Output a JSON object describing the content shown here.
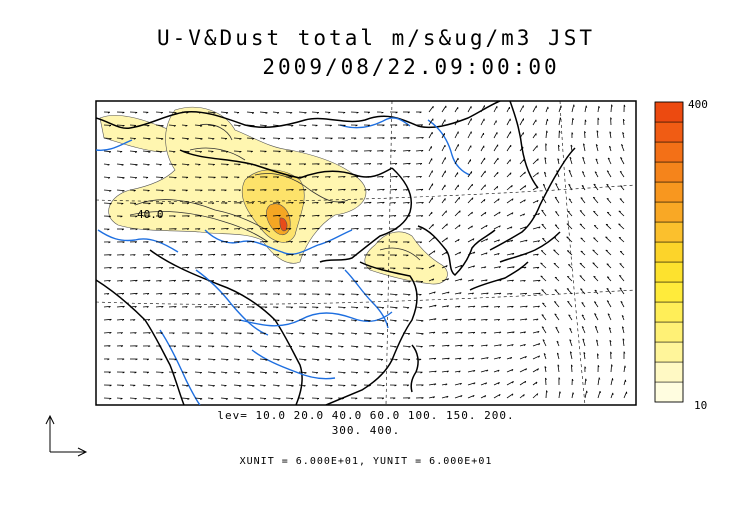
{
  "title": {
    "line1": "U-V&Dust total m/s&ug/m3 JST",
    "line2": "2009/08/22.09:00:00"
  },
  "contour_levels": {
    "line1": "lev= 10.0 20.0 40.0 60.0 100. 150. 200.",
    "line2": "300. 400."
  },
  "contour_label": "40.0",
  "vector_units": "XUNIT = 6.000E+01, YUNIT = 6.000E+01",
  "colorbar": {
    "max_label": "400",
    "min_label": "10",
    "colors": [
      "#fffde0",
      "#fff9c4",
      "#fff59a",
      "#fff176",
      "#ffee58",
      "#ffeb3b",
      "#fde22e",
      "#fcd42a",
      "#fbc02d",
      "#f9a825",
      "#f8971f",
      "#f5841b",
      "#f37017",
      "#f05c14",
      "#ec4a10"
    ]
  },
  "colors": {
    "coast": "#000000",
    "river": "#1e6fe0",
    "dust_light": "#fff6b0",
    "dust_mid": "#fde26a",
    "dust_high": "#f5a623",
    "dust_peak": "#e84c1a"
  }
}
